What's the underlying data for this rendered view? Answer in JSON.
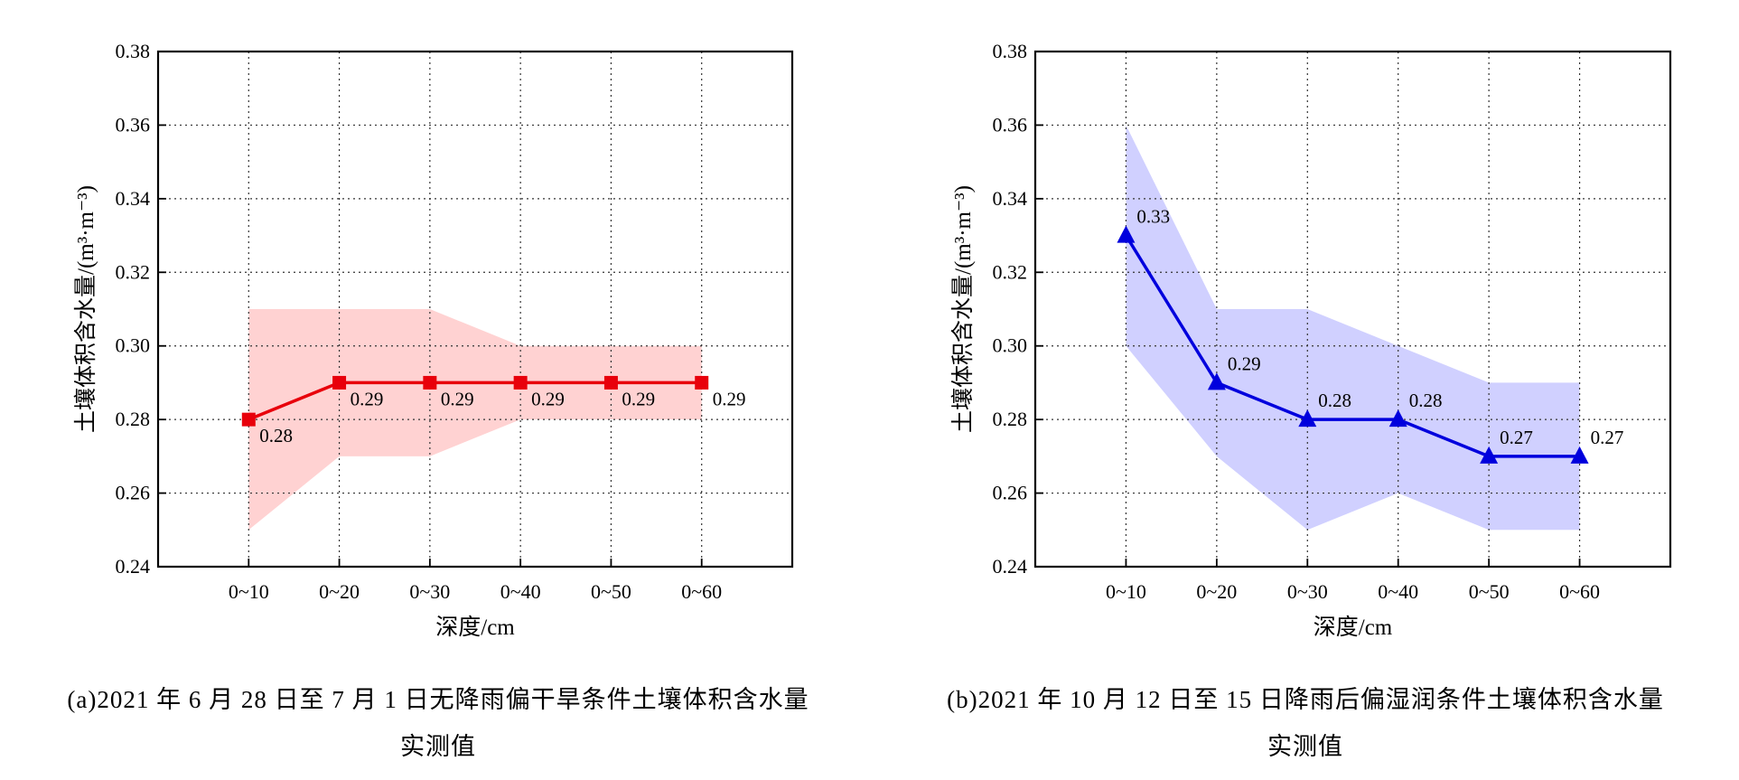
{
  "chart_data": [
    {
      "type": "line",
      "categories": [
        "0~10",
        "0~20",
        "0~30",
        "0~40",
        "0~50",
        "0~60"
      ],
      "series": [
        {
          "values": [
            0.28,
            0.29,
            0.29,
            0.29,
            0.29,
            0.29
          ],
          "color": "#e8000b",
          "marker": "square"
        }
      ],
      "band": {
        "lower": [
          0.25,
          0.27,
          0.27,
          0.28,
          0.28,
          0.28
        ],
        "upper": [
          0.31,
          0.31,
          0.31,
          0.3,
          0.3,
          0.3
        ],
        "color": "#ffd2d2"
      },
      "data_labels": [
        "0.28",
        "0.29",
        "0.29",
        "0.29",
        "0.29",
        "0.29"
      ],
      "label_position": "below-right",
      "ylim": [
        0.24,
        0.38
      ],
      "yticks": [
        "0.24",
        "0.26",
        "0.28",
        "0.30",
        "0.32",
        "0.34",
        "0.36",
        "0.38"
      ],
      "xlabel": "深度/cm",
      "ylabel": "土壤体积含水量/(m³·m⁻³)",
      "grid": true,
      "caption_line1": "(a)2021 年 6 月 28 日至 7 月 1 日无降雨偏干旱条件土壤体积含水量",
      "caption_line2": "实测值"
    },
    {
      "type": "line",
      "categories": [
        "0~10",
        "0~20",
        "0~30",
        "0~40",
        "0~50",
        "0~60"
      ],
      "series": [
        {
          "values": [
            0.33,
            0.29,
            0.28,
            0.28,
            0.27,
            0.27
          ],
          "color": "#0000dd",
          "marker": "triangle"
        }
      ],
      "band": {
        "lower": [
          0.3,
          0.27,
          0.25,
          0.26,
          0.25,
          0.25
        ],
        "upper": [
          0.36,
          0.31,
          0.31,
          0.3,
          0.29,
          0.29
        ],
        "color": "#d0d0ff"
      },
      "data_labels": [
        "0.33",
        "0.29",
        "0.28",
        "0.28",
        "0.27",
        "0.27"
      ],
      "label_position": "above-right",
      "ylim": [
        0.24,
        0.38
      ],
      "yticks": [
        "0.24",
        "0.26",
        "0.28",
        "0.30",
        "0.32",
        "0.34",
        "0.36",
        "0.38"
      ],
      "xlabel": "深度/cm",
      "ylabel": "土壤体积含水量/(m³·m⁻³)",
      "grid": true,
      "caption_line1": "(b)2021 年 10 月 12 日至 15 日降雨后偏湿润条件土壤体积含水量",
      "caption_line2": "实测值"
    }
  ]
}
